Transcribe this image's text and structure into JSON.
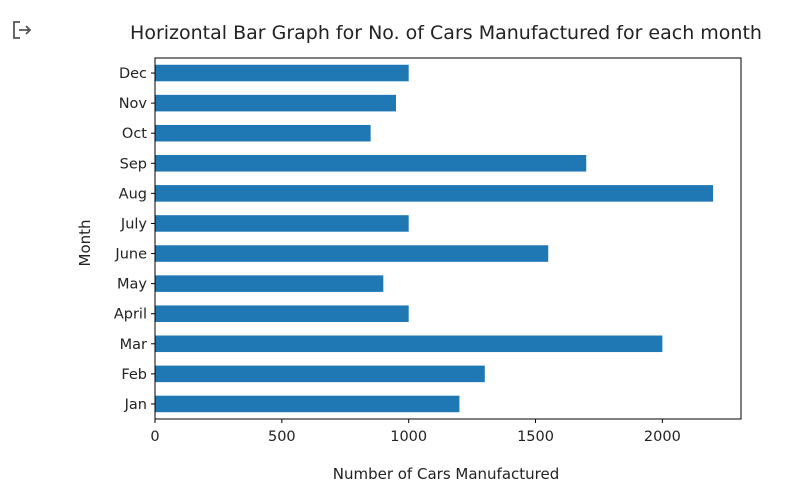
{
  "output_icon": "output-arrow-icon",
  "chart_data": {
    "type": "bar",
    "orientation": "horizontal",
    "title": "Horizontal Bar Graph for No. of Cars Manufactured for each month",
    "xlabel": "Number of Cars Manufactured",
    "ylabel": "Month",
    "categories": [
      "Jan",
      "Feb",
      "Mar",
      "April",
      "May",
      "June",
      "July",
      "Aug",
      "Sep",
      "Oct",
      "Nov",
      "Dec"
    ],
    "values": [
      1200,
      1300,
      2000,
      1000,
      900,
      1550,
      1000,
      2200,
      1700,
      850,
      950,
      1000
    ],
    "xlim": [
      0,
      2310
    ],
    "xticks": [
      0,
      500,
      1000,
      1500,
      2000
    ],
    "bar_color": "#1f77b4",
    "grid": false,
    "legend": false
  }
}
